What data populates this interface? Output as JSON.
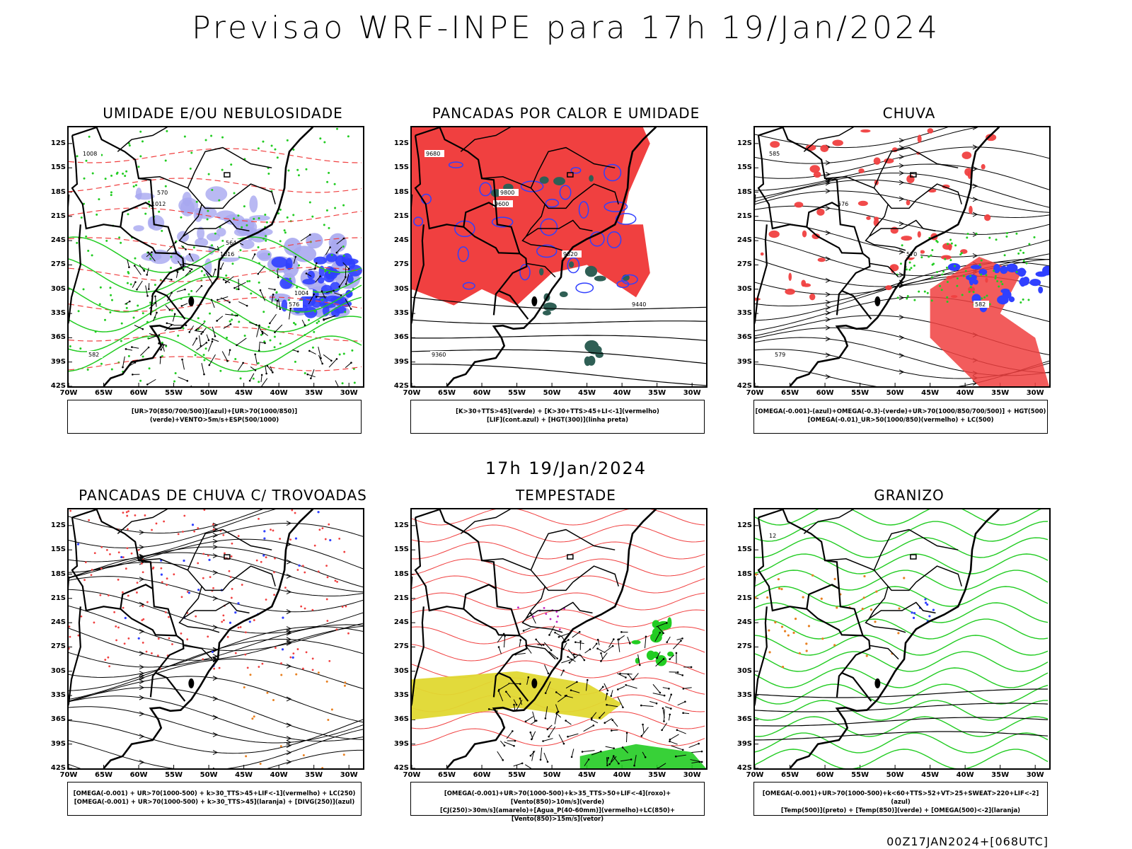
{
  "header": {
    "title": "Previsao WRF-INPE  para 17h 19/Jan/2024",
    "sub_date": "17h 19/Jan/2024",
    "footer": "00Z17JAN2024+[068UTC]"
  },
  "axes": {
    "lat_labels": [
      "12S",
      "15S",
      "18S",
      "21S",
      "24S",
      "27S",
      "30S",
      "33S",
      "36S",
      "39S",
      "42S"
    ],
    "lon_labels": [
      "70W",
      "65W",
      "60W",
      "55W",
      "50W",
      "45W",
      "40W",
      "35W",
      "30W"
    ]
  },
  "colors": {
    "red": "#f04040",
    "green": "#22cc22",
    "blue": "#3040ff",
    "lightblue": "#a8a8f0",
    "darkteal": "#2f5f55",
    "yellow": "#e0d830",
    "orange": "#e88020",
    "purple": "#c020c0",
    "black": "#000000"
  },
  "panels": [
    {
      "title": "UMIDADE E/OU NEBULOSIDADE",
      "legend_lines": [
        "[UR>70(850/700/500)](azul)+[UR>70(1000/850)](verde)+VENTO>5m/s+ESP(500/1000)"
      ],
      "contour_labels": [
        "1008",
        "1012",
        "1016",
        "576",
        "582",
        "570",
        "564",
        "1004"
      ]
    },
    {
      "title": "PANCADAS POR CALOR E UMIDADE",
      "legend_lines": [
        "[K>30+TTS>45](verde) + [K>30+TTS>45+LI<-1](vermelho)",
        "[LIF](cont.azul) + [HGT(300)](linha preta)"
      ],
      "contour_labels": [
        "9680",
        "9600",
        "9520",
        "9440",
        "9360",
        "9800"
      ]
    },
    {
      "title": "CHUVA",
      "legend_lines": [
        "[OMEGA(-0.001)-(azul)+OMEGA(-0.3)-(verde)+UR>70(1000/850/700/500)] + HGT(500)",
        "[OMEGA(-0.01)_UR>50(1000/850)(vermelho) + LC(500)"
      ],
      "contour_labels": [
        "585",
        "576",
        "570",
        "582",
        "579"
      ]
    },
    {
      "title": "PANCADAS DE CHUVA C/ TROVOADAS",
      "legend_lines": [
        "[OMEGA(-0.001) + UR>70(1000-500) + k>30_TTS>45+LIF<-1](vermelho) + LC(250)",
        "[OMEGA(-0.001) + UR>70(1000-500) + k>30_TTS>45](laranja) + [DIVG(250)](azul)"
      ],
      "contour_labels": []
    },
    {
      "title": "TEMPESTADE",
      "legend_lines": [
        "[OMEGA(-0.001)+UR>70(1000-500)+k>35_TTS>50+LIF<-4](roxo)+[Vento(850)>10m/s](verde)",
        "[CJ(250)>30m/s](amarelo)+[Agua_P(40-60mm)](vermelho)+LC(850)+[Vento(850)>15m/s](vetor)"
      ],
      "contour_labels": []
    },
    {
      "title": "GRANIZO",
      "legend_lines": [
        "[OMEGA(-0.001)+UR>70(1000-500)+k<60+TTS>52+VT>25+SWEAT>220+LIF<-2](azul)",
        "[Temp(500)](preto) + [Temp(850)](verde) + [OMEGA(500)<-2](laranja)"
      ],
      "contour_labels": [
        "12"
      ]
    }
  ]
}
